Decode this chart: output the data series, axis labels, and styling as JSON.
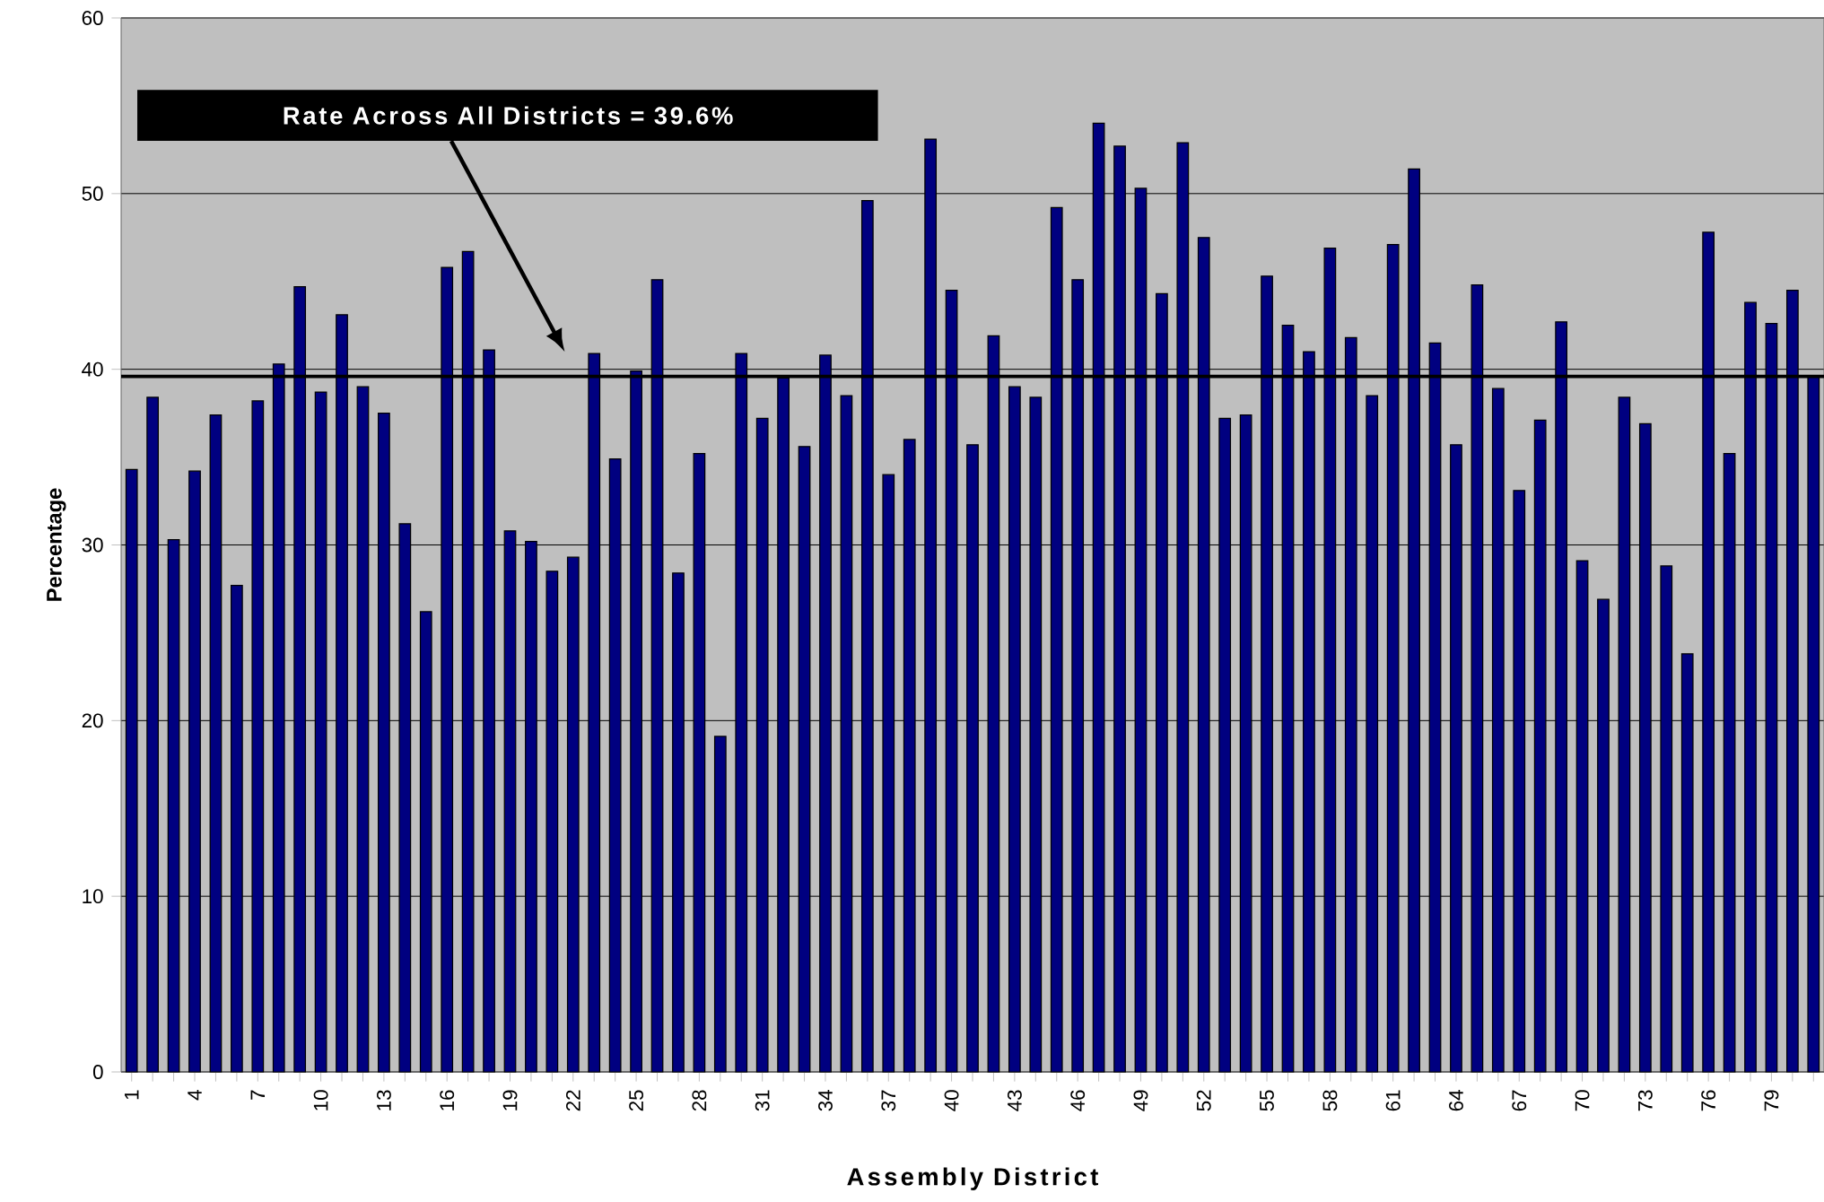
{
  "chart_data": {
    "type": "bar",
    "xlabel": "Assembly District",
    "ylabel": "Percentage",
    "categories": [
      "1",
      null,
      null,
      "4",
      null,
      null,
      "7",
      null,
      null,
      "10",
      null,
      null,
      "13",
      null,
      null,
      "16",
      null,
      null,
      "19",
      null,
      null,
      "22",
      null,
      null,
      "25",
      null,
      null,
      "28",
      null,
      null,
      "31",
      null,
      null,
      "34",
      null,
      null,
      "37",
      null,
      null,
      "40",
      null,
      null,
      "43",
      null,
      null,
      "46",
      null,
      null,
      "49",
      null,
      null,
      "52",
      null,
      null,
      "55",
      null,
      null,
      "58",
      null,
      null,
      "61",
      null,
      null,
      "64",
      null,
      null,
      "67",
      null,
      null,
      "70",
      null,
      null,
      "73",
      null,
      null,
      "76",
      null,
      null,
      "79",
      null,
      null
    ],
    "values": [
      34.3,
      38.4,
      30.3,
      34.2,
      37.4,
      27.7,
      38.2,
      40.3,
      44.7,
      38.7,
      43.1,
      39.0,
      37.5,
      31.2,
      26.2,
      45.8,
      46.7,
      41.1,
      30.8,
      30.2,
      28.5,
      29.3,
      40.9,
      34.9,
      39.9,
      45.1,
      28.4,
      35.2,
      19.1,
      40.9,
      37.2,
      39.5,
      35.6,
      40.8,
      38.5,
      49.6,
      34.0,
      36.0,
      53.1,
      44.5,
      35.7,
      41.9,
      39.0,
      38.4,
      49.2,
      45.1,
      54.0,
      52.7,
      50.3,
      44.3,
      52.9,
      47.5,
      37.2,
      37.4,
      45.3,
      42.5,
      41.0,
      46.9,
      41.8,
      38.5,
      47.1,
      51.4,
      41.5,
      35.7,
      44.8,
      38.9,
      33.1,
      37.1,
      42.7,
      29.1,
      26.9,
      38.4,
      36.9,
      28.8,
      23.8,
      47.8,
      35.2,
      43.8,
      42.6,
      44.5,
      39.6
    ],
    "color": "#000080",
    "ylim": [
      0,
      60
    ],
    "yticks": [
      0,
      10,
      20,
      30,
      40,
      50,
      60
    ],
    "grid": "y",
    "annotations": [
      "Rate Across All Districts = 39.6%"
    ],
    "ref_lines": [
      {
        "axis": "y",
        "value": 39.6,
        "color": "#000000"
      }
    ]
  }
}
